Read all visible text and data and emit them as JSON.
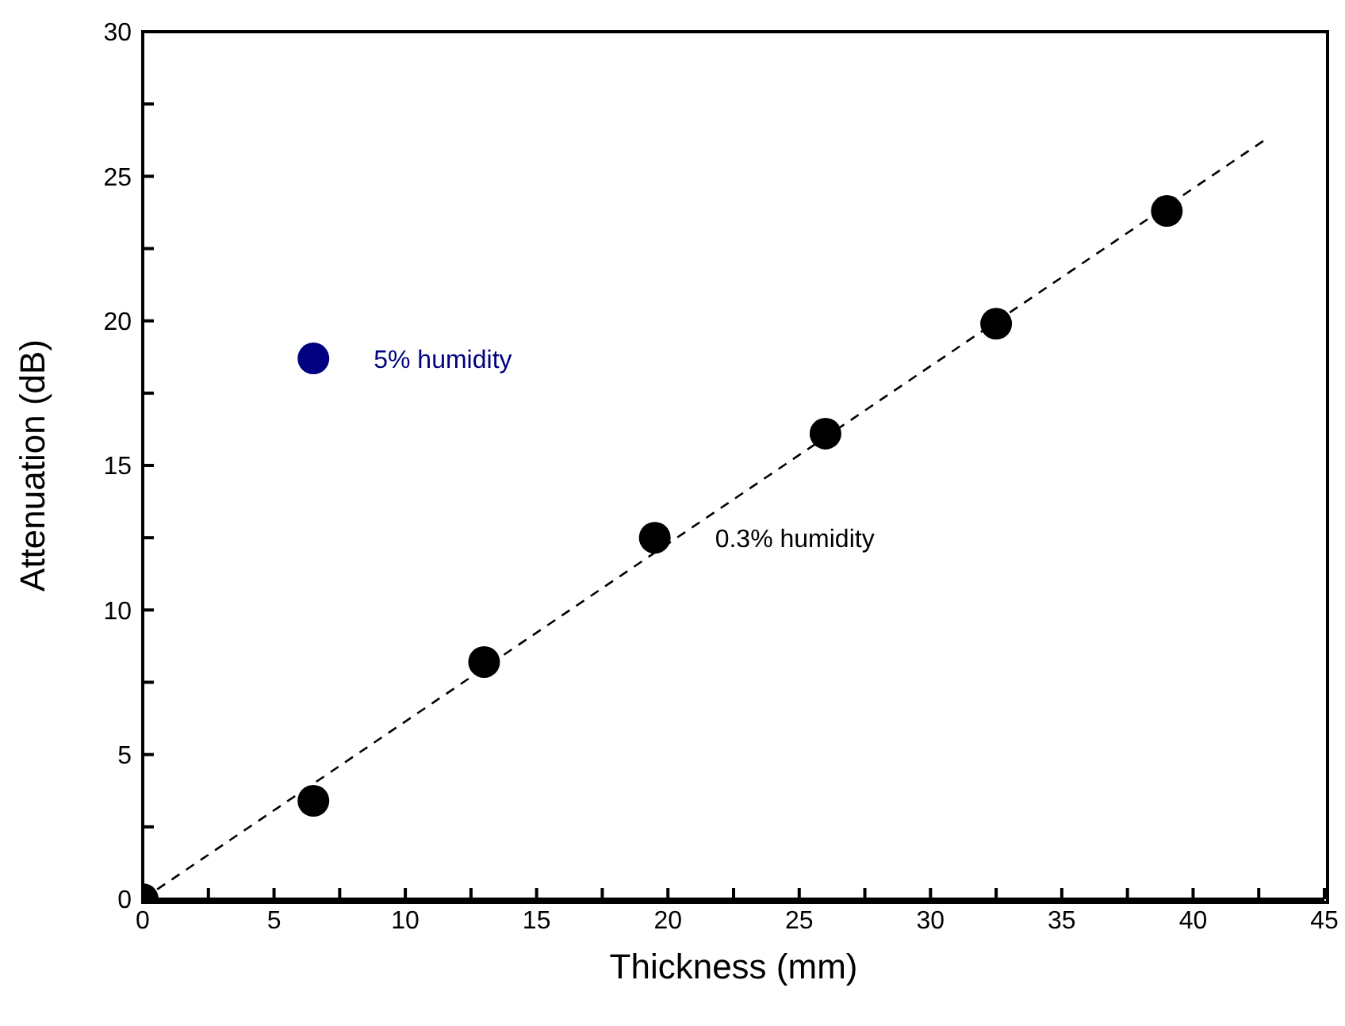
{
  "chart_data": {
    "type": "scatter",
    "xlabel": "Thickness (mm)",
    "ylabel": "Attenuation (dB)",
    "xlim": [
      0,
      45
    ],
    "ylim": [
      0,
      30
    ],
    "xticks": [
      0,
      {
        "value": 2.5,
        "label": null
      },
      5,
      {
        "value": 7.5,
        "label": null
      },
      10,
      {
        "value": 12.5,
        "label": null
      },
      15,
      {
        "value": 17.5,
        "label": null
      },
      20,
      {
        "value": 22.5,
        "label": null
      },
      25,
      {
        "value": 27.5,
        "label": null
      },
      30,
      {
        "value": 32.5,
        "label": null
      },
      35,
      {
        "value": 37.5,
        "label": null
      },
      40,
      {
        "value": 42.5,
        "label": null
      },
      45
    ],
    "yticks": [
      0,
      {
        "value": 2.5,
        "label": null
      },
      5,
      {
        "value": 7.5,
        "label": null
      },
      10,
      {
        "value": 12.5,
        "label": null
      },
      15,
      {
        "value": 17.5,
        "label": null
      },
      20,
      {
        "value": 22.5,
        "label": null
      },
      25,
      {
        "value": 27.5,
        "label": null
      },
      30
    ],
    "marker": "circle",
    "grid": false,
    "legend": false,
    "series": [
      {
        "name": "0.3% humidity",
        "color": "#000000",
        "x": [
          0,
          6.5,
          13,
          19.5,
          26,
          32.5,
          39
        ],
        "values": [
          0,
          3.4,
          8.2,
          12.5,
          16.1,
          19.9,
          23.8
        ]
      },
      {
        "name": "5% humidity",
        "color": "#000080",
        "x": [
          6.5
        ],
        "values": [
          18.7
        ]
      },
      {
        "type": "line",
        "color": "#000000",
        "line_style": "dashed",
        "marker": "none",
        "x": [
          0,
          42.8
        ],
        "values": [
          0,
          26.3
        ]
      }
    ]
  }
}
